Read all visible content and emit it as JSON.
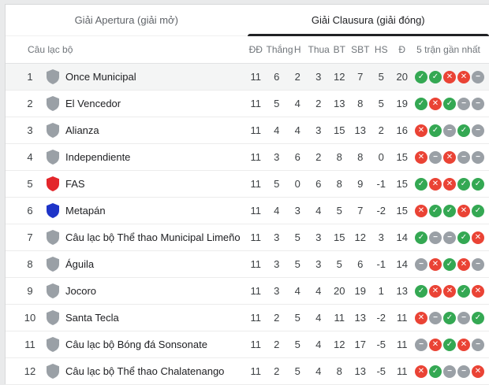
{
  "tabs": [
    {
      "label": "Giải Apertura (giải mở)",
      "active": false
    },
    {
      "label": "Giải Clausura (giải đóng)",
      "active": true
    }
  ],
  "table": {
    "club_header": "Câu lạc bộ",
    "stat_headers": [
      "ĐĐ",
      "Thắng",
      "H",
      "Thua",
      "BT",
      "SBT",
      "HS",
      "Đ"
    ],
    "form_header": "5 trận gần nhất",
    "rows": [
      {
        "pos": 1,
        "club": "Once Municipal",
        "shield_color": "#9aa0a6",
        "stats": [
          11,
          6,
          2,
          3,
          12,
          7,
          5,
          20
        ],
        "form": [
          "W",
          "W",
          "L",
          "L",
          "D"
        ],
        "highlighted": true
      },
      {
        "pos": 2,
        "club": "El Vencedor",
        "shield_color": "#9aa0a6",
        "stats": [
          11,
          5,
          4,
          2,
          13,
          8,
          5,
          19
        ],
        "form": [
          "W",
          "L",
          "W",
          "D",
          "D"
        ],
        "highlighted": false
      },
      {
        "pos": 3,
        "club": "Alianza",
        "shield_color": "#9aa0a6",
        "stats": [
          11,
          4,
          4,
          3,
          15,
          13,
          2,
          16
        ],
        "form": [
          "L",
          "W",
          "D",
          "W",
          "D"
        ],
        "highlighted": false
      },
      {
        "pos": 4,
        "club": "Independiente",
        "shield_color": "#9aa0a6",
        "stats": [
          11,
          3,
          6,
          2,
          8,
          8,
          0,
          15
        ],
        "form": [
          "L",
          "D",
          "L",
          "D",
          "D"
        ],
        "highlighted": false
      },
      {
        "pos": 5,
        "club": "FAS",
        "shield_color": "#e3262b",
        "stats": [
          11,
          5,
          0,
          6,
          8,
          9,
          -1,
          15
        ],
        "form": [
          "W",
          "L",
          "L",
          "W",
          "W"
        ],
        "highlighted": false
      },
      {
        "pos": 6,
        "club": "Metapán",
        "shield_color": "#1e34c8",
        "stats": [
          11,
          4,
          3,
          4,
          5,
          7,
          -2,
          15
        ],
        "form": [
          "L",
          "W",
          "W",
          "L",
          "W"
        ],
        "highlighted": false
      },
      {
        "pos": 7,
        "club": "Câu lạc bộ Thể thao Municipal Limeño",
        "shield_color": "#9aa0a6",
        "stats": [
          11,
          3,
          5,
          3,
          15,
          12,
          3,
          14
        ],
        "form": [
          "W",
          "D",
          "D",
          "W",
          "L"
        ],
        "highlighted": false
      },
      {
        "pos": 8,
        "club": "Águila",
        "shield_color": "#9aa0a6",
        "stats": [
          11,
          3,
          5,
          3,
          5,
          6,
          -1,
          14
        ],
        "form": [
          "D",
          "L",
          "W",
          "L",
          "D"
        ],
        "highlighted": false
      },
      {
        "pos": 9,
        "club": "Jocoro",
        "shield_color": "#9aa0a6",
        "stats": [
          11,
          3,
          4,
          4,
          20,
          19,
          1,
          13
        ],
        "form": [
          "W",
          "L",
          "L",
          "W",
          "L"
        ],
        "highlighted": false
      },
      {
        "pos": 10,
        "club": "Santa Tecla",
        "shield_color": "#9aa0a6",
        "stats": [
          11,
          2,
          5,
          4,
          11,
          13,
          -2,
          11
        ],
        "form": [
          "L",
          "D",
          "W",
          "D",
          "W"
        ],
        "highlighted": false
      },
      {
        "pos": 11,
        "club": "Câu lạc bộ Bóng đá Sonsonate",
        "shield_color": "#9aa0a6",
        "stats": [
          11,
          2,
          5,
          4,
          12,
          17,
          -5,
          11
        ],
        "form": [
          "D",
          "L",
          "W",
          "L",
          "D"
        ],
        "highlighted": false
      },
      {
        "pos": 12,
        "club": "Câu lạc bộ Thể thao Chalatenango",
        "shield_color": "#9aa0a6",
        "stats": [
          11,
          2,
          5,
          4,
          8,
          13,
          -5,
          11
        ],
        "form": [
          "L",
          "W",
          "D",
          "D",
          "L"
        ],
        "highlighted": false
      }
    ]
  },
  "form_legend": {
    "W": {
      "name": "win",
      "glyph": "✓",
      "color": "#34a853"
    },
    "L": {
      "name": "loss",
      "glyph": "✕",
      "color": "#ea4335"
    },
    "D": {
      "name": "draw",
      "glyph": "−",
      "color": "#9aa0a6"
    }
  },
  "colors": {
    "active_tab_underline": "#202124",
    "active_tab_text": "#202124",
    "inactive_tab_text": "#5f6368",
    "header_text": "#70757a",
    "row_highlight": "#f4f5f5",
    "win_green": "#34a853",
    "loss_red": "#ea4335",
    "draw_gray": "#9aa0a6",
    "shield_default": "#9aa0a6",
    "page_background": "#e9eaeb"
  }
}
